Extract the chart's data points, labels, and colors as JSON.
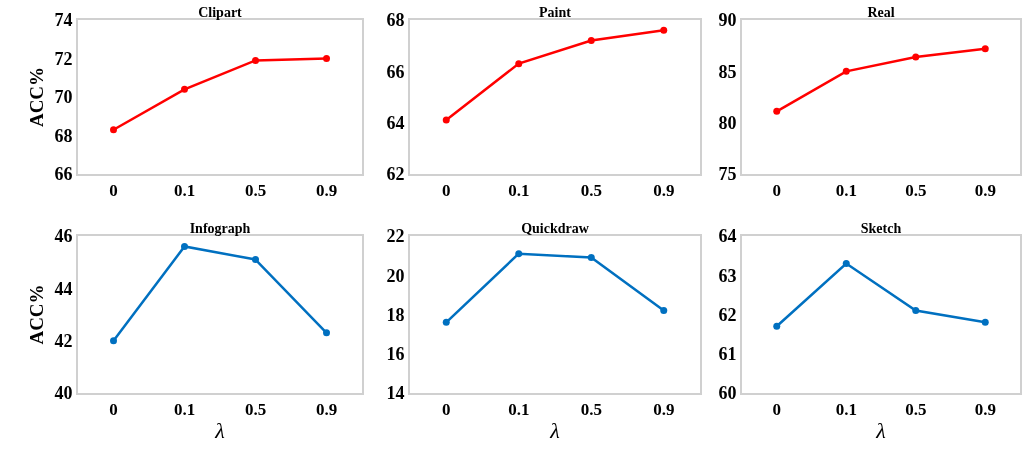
{
  "chart_data": [
    {
      "type": "line",
      "title": "Clipart",
      "ylabel": "ACC%",
      "categories": [
        "0",
        "0.1",
        "0.5",
        "0.9"
      ],
      "series": [
        {
          "color": "#ff0000",
          "values": [
            68.3,
            70.4,
            71.9,
            72.0
          ]
        }
      ],
      "ylim": [
        66,
        74
      ],
      "yticks": [
        66,
        68,
        70,
        72,
        74
      ],
      "marker": "circle",
      "line_style": "solid"
    },
    {
      "type": "line",
      "title": "Paint",
      "categories": [
        "0",
        "0.1",
        "0.5",
        "0.9"
      ],
      "series": [
        {
          "color": "#ff0000",
          "values": [
            64.1,
            66.3,
            67.2,
            67.6
          ]
        }
      ],
      "ylim": [
        62,
        68
      ],
      "yticks": [
        62,
        64,
        66,
        68
      ],
      "marker": "circle",
      "line_style": "solid"
    },
    {
      "type": "line",
      "title": "Real",
      "categories": [
        "0",
        "0.1",
        "0.5",
        "0.9"
      ],
      "series": [
        {
          "color": "#ff0000",
          "values": [
            81.1,
            85.0,
            86.4,
            87.2
          ]
        }
      ],
      "ylim": [
        75,
        90
      ],
      "yticks": [
        75,
        80,
        85,
        90
      ],
      "marker": "circle",
      "line_style": "solid"
    },
    {
      "type": "line",
      "title": "Infograph",
      "xlabel": "λ",
      "ylabel": "ACC%",
      "categories": [
        "0",
        "0.1",
        "0.5",
        "0.9"
      ],
      "series": [
        {
          "color": "#0070c0",
          "values": [
            42.0,
            45.6,
            45.1,
            42.3
          ]
        }
      ],
      "ylim": [
        40,
        46
      ],
      "yticks": [
        40,
        42,
        44,
        46
      ],
      "marker": "circle",
      "line_style": "solid"
    },
    {
      "type": "line",
      "title": "Quickdraw",
      "xlabel": "λ",
      "categories": [
        "0",
        "0.1",
        "0.5",
        "0.9"
      ],
      "series": [
        {
          "color": "#0070c0",
          "values": [
            17.6,
            21.1,
            20.9,
            18.2
          ]
        }
      ],
      "ylim": [
        14,
        22
      ],
      "yticks": [
        14,
        16,
        18,
        20,
        22
      ],
      "marker": "circle",
      "line_style": "solid"
    },
    {
      "type": "line",
      "title": "Sketch",
      "xlabel": "λ",
      "categories": [
        "0",
        "0.1",
        "0.5",
        "0.9"
      ],
      "series": [
        {
          "color": "#0070c0",
          "values": [
            61.7,
            63.3,
            62.1,
            61.8
          ]
        }
      ],
      "ylim": [
        60,
        64
      ],
      "yticks": [
        60,
        61,
        62,
        63,
        64
      ],
      "marker": "circle",
      "line_style": "solid"
    }
  ]
}
